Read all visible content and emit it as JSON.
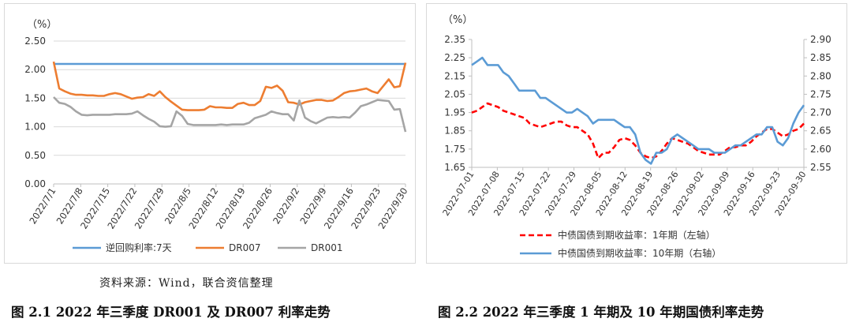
{
  "chart_data": [
    {
      "type": "line",
      "unit_label": "（%）",
      "ylim": [
        0,
        2.5
      ],
      "y_ticks": [
        "0.00",
        "0.50",
        "1.00",
        "1.50",
        "2.00",
        "2.50"
      ],
      "x_tick_labels": [
        "2022/7/1",
        "2022/7/8",
        "2022/7/15",
        "2022/7/22",
        "2022/7/29",
        "2022/8/5",
        "2022/8/12",
        "2022/8/19",
        "2022/8/26",
        "2022/9/2",
        "2022/9/9",
        "2022/9/16",
        "2022/9/23",
        "2022/9/30"
      ],
      "n_points": 64,
      "series": [
        {
          "name": "逆回购利率:7天",
          "color": "#5b9bd5",
          "values": [
            2.1,
            2.1,
            2.1,
            2.1,
            2.1,
            2.1,
            2.1,
            2.1,
            2.1,
            2.1,
            2.1,
            2.1,
            2.1,
            2.1,
            2.1,
            2.1,
            2.1,
            2.1,
            2.1,
            2.1,
            2.1,
            2.1,
            2.1,
            2.1,
            2.1,
            2.1,
            2.1,
            2.1,
            2.1,
            2.1,
            2.1,
            2.1,
            2.1,
            2.1,
            2.1,
            2.1,
            2.1,
            2.1,
            2.1,
            2.1,
            2.1,
            2.1,
            2.1,
            2.1,
            2.1,
            2.1,
            2.1,
            2.1,
            2.1,
            2.1,
            2.1,
            2.1,
            2.1,
            2.1,
            2.1,
            2.1,
            2.1,
            2.1,
            2.1,
            2.1,
            2.1,
            2.1,
            2.1,
            2.1
          ]
        },
        {
          "name": "DR007",
          "color": "#ed7d31",
          "values": [
            2.14,
            1.67,
            1.62,
            1.58,
            1.56,
            1.56,
            1.55,
            1.55,
            1.54,
            1.54,
            1.57,
            1.59,
            1.57,
            1.53,
            1.49,
            1.51,
            1.52,
            1.57,
            1.54,
            1.62,
            1.52,
            1.44,
            1.37,
            1.3,
            1.29,
            1.29,
            1.29,
            1.3,
            1.36,
            1.34,
            1.34,
            1.33,
            1.33,
            1.4,
            1.42,
            1.38,
            1.38,
            1.45,
            1.7,
            1.68,
            1.72,
            1.63,
            1.43,
            1.42,
            1.39,
            1.43,
            1.45,
            1.47,
            1.47,
            1.45,
            1.46,
            1.52,
            1.59,
            1.62,
            1.63,
            1.65,
            1.67,
            1.62,
            1.59,
            1.71,
            1.83,
            1.69,
            1.71,
            2.12
          ]
        },
        {
          "name": "DR001",
          "color": "#a5a5a5",
          "values": [
            1.52,
            1.42,
            1.4,
            1.35,
            1.27,
            1.21,
            1.2,
            1.21,
            1.21,
            1.21,
            1.21,
            1.22,
            1.22,
            1.22,
            1.23,
            1.27,
            1.2,
            1.14,
            1.09,
            1.01,
            1.0,
            1.01,
            1.27,
            1.19,
            1.05,
            1.03,
            1.03,
            1.03,
            1.03,
            1.03,
            1.04,
            1.03,
            1.04,
            1.04,
            1.04,
            1.07,
            1.15,
            1.18,
            1.21,
            1.27,
            1.24,
            1.22,
            1.22,
            1.11,
            1.46,
            1.16,
            1.1,
            1.06,
            1.11,
            1.16,
            1.17,
            1.16,
            1.17,
            1.16,
            1.25,
            1.36,
            1.39,
            1.43,
            1.47,
            1.46,
            1.45,
            1.3,
            1.31,
            0.91
          ]
        }
      ]
    },
    {
      "type": "line",
      "unit_label": "（%）",
      "ylim_left": [
        1.65,
        2.35
      ],
      "y_ticks_left": [
        "1.65",
        "1.75",
        "1.85",
        "1.95",
        "2.05",
        "2.15",
        "2.25",
        "2.35"
      ],
      "ylim_right": [
        2.55,
        2.9
      ],
      "y_ticks_right": [
        "2.55",
        "2.60",
        "2.65",
        "2.70",
        "2.75",
        "2.80",
        "2.85",
        "2.90"
      ],
      "x_tick_labels": [
        "2022-07-01",
        "2022-07-08",
        "2022-07-15",
        "2022-07-22",
        "2022-07-29",
        "2022-08-05",
        "2022-08-12",
        "2022-08-19",
        "2022-08-26",
        "2022-09-02",
        "2022-09-09",
        "2022-09-16",
        "2022-09-23",
        "2022-09-30"
      ],
      "n_points": 64,
      "series": [
        {
          "name": "中债国债到期收益率：1年期（左轴）",
          "color": "#ff0000",
          "dash": true,
          "axis": "left",
          "values": [
            1.95,
            1.96,
            1.98,
            2.0,
            1.99,
            1.98,
            1.96,
            1.95,
            1.94,
            1.93,
            1.92,
            1.89,
            1.88,
            1.87,
            1.88,
            1.89,
            1.9,
            1.9,
            1.88,
            1.87,
            1.87,
            1.85,
            1.83,
            1.78,
            1.7,
            1.73,
            1.73,
            1.76,
            1.8,
            1.81,
            1.8,
            1.77,
            1.73,
            1.71,
            1.7,
            1.71,
            1.74,
            1.78,
            1.81,
            1.8,
            1.79,
            1.78,
            1.76,
            1.74,
            1.73,
            1.72,
            1.72,
            1.72,
            1.74,
            1.76,
            1.76,
            1.77,
            1.77,
            1.79,
            1.82,
            1.84,
            1.86,
            1.86,
            1.84,
            1.82,
            1.83,
            1.85,
            1.86,
            1.89
          ]
        },
        {
          "name": "中债国债到期收益率：10年期（右轴）",
          "color": "#5b9bd5",
          "dash": false,
          "axis": "right",
          "values": [
            2.83,
            2.84,
            2.85,
            2.83,
            2.83,
            2.83,
            2.81,
            2.8,
            2.78,
            2.76,
            2.76,
            2.76,
            2.76,
            2.74,
            2.74,
            2.73,
            2.72,
            2.71,
            2.7,
            2.7,
            2.71,
            2.7,
            2.69,
            2.67,
            2.68,
            2.68,
            2.68,
            2.68,
            2.67,
            2.66,
            2.66,
            2.64,
            2.59,
            2.57,
            2.56,
            2.59,
            2.59,
            2.6,
            2.63,
            2.64,
            2.63,
            2.62,
            2.61,
            2.6,
            2.6,
            2.6,
            2.59,
            2.59,
            2.59,
            2.6,
            2.61,
            2.61,
            2.62,
            2.63,
            2.64,
            2.64,
            2.66,
            2.66,
            2.62,
            2.61,
            2.63,
            2.67,
            2.7,
            2.72
          ]
        }
      ]
    }
  ],
  "source_note": "资料来源：Wind，联合资信整理",
  "captions": {
    "left": "图 2.1    2022 年三季度 DR001 及 DR007 利率走势",
    "right": "图 2.2    2022 年三季度 1 年期及 10 年期国债利率走势"
  }
}
